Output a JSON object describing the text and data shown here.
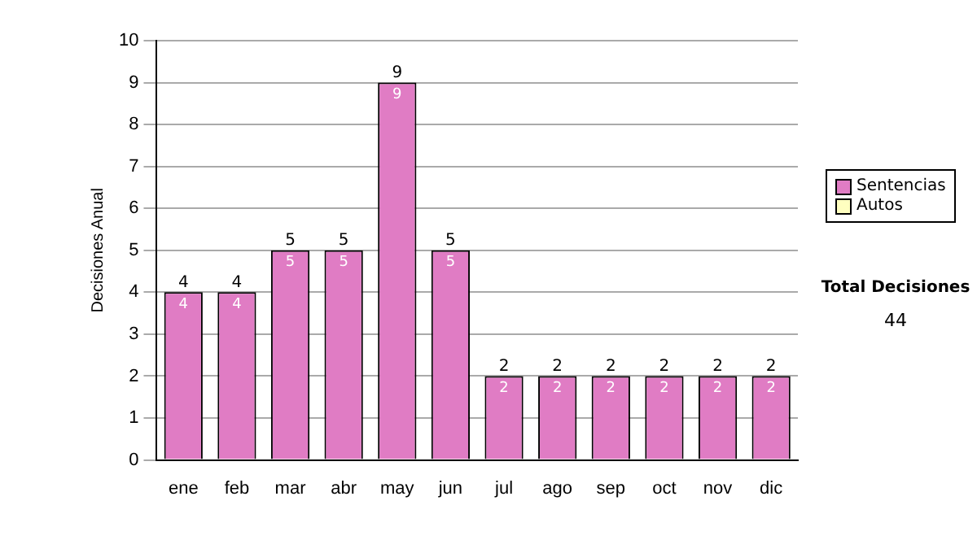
{
  "chart_data": {
    "type": "bar",
    "ylabel": "Decisiones Anual",
    "categories": [
      "ene",
      "feb",
      "mar",
      "abr",
      "may",
      "jun",
      "jul",
      "ago",
      "sep",
      "oct",
      "nov",
      "dic"
    ],
    "series": [
      {
        "name": "Sentencias",
        "color": "#e07cc4",
        "values": [
          4,
          4,
          5,
          5,
          9,
          5,
          2,
          2,
          2,
          2,
          2,
          2
        ],
        "value_labels": [
          "4",
          "4",
          "5",
          "5",
          "9",
          "5",
          "2",
          "2",
          "2",
          "2",
          "2",
          "2"
        ]
      },
      {
        "name": "Autos",
        "color": "#ffffc0",
        "values": [
          0,
          0,
          0,
          0,
          0,
          0,
          0,
          0,
          0,
          0,
          0,
          0
        ]
      }
    ],
    "stacked": true,
    "totals": [
      "4",
      "4",
      "5",
      "5",
      "9",
      "5",
      "2",
      "2",
      "2",
      "2",
      "2",
      "2"
    ],
    "ylim": [
      0,
      10
    ],
    "yticks": [
      0,
      1,
      2,
      3,
      4,
      5,
      6,
      7,
      8,
      9,
      10
    ],
    "grid": "y",
    "legend": "right",
    "annotations": [
      "Total Decisiones",
      "44"
    ]
  }
}
